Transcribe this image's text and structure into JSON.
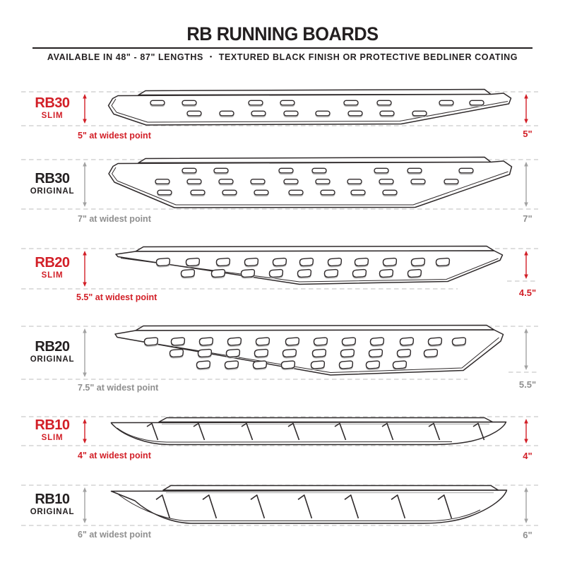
{
  "header": {
    "title": "RB RUNNING BOARDS",
    "subtitle_left": "AVAILABLE IN 48\" - 87\" LENGTHS",
    "subtitle_separator": "•",
    "subtitle_right": "TEXTURED BLACK FINISH OR PROTECTIVE BEDLINER COATING"
  },
  "colors": {
    "accent_red": "#d21f27",
    "ink": "#231f20",
    "muted_gray": "#8f8f8f",
    "arrow_gray": "#a2a2a2",
    "dash_gray": "#c9c9c9",
    "line_dark": "#2f2a2b"
  },
  "rows": [
    {
      "model": "RB30",
      "variant": "SLIM",
      "theme": "red",
      "width_note": "5\" at widest point",
      "height_label": "5\"",
      "tread_pattern": "oval-slots",
      "slot_rows": [
        8,
        8
      ]
    },
    {
      "model": "RB30",
      "variant": "ORIGINAL",
      "theme": "gray",
      "width_note": "7\" at widest point",
      "height_label": "7\"",
      "tread_pattern": "oval-slots",
      "slot_rows": [
        7,
        10,
        8
      ]
    },
    {
      "model": "RB20",
      "variant": "SLIM",
      "theme": "red",
      "width_note": "5.5\" at widest point",
      "height_label": "4.5\"",
      "tread_pattern": "d-slots",
      "slot_rows": [
        11,
        9
      ]
    },
    {
      "model": "RB20",
      "variant": "ORIGINAL",
      "theme": "gray",
      "width_note": "7.5\" at widest point",
      "height_label": "5.5\"",
      "tread_pattern": "d-slots",
      "slot_rows": [
        12,
        10,
        8
      ]
    },
    {
      "model": "RB10",
      "variant": "SLIM",
      "theme": "red",
      "width_note": "4\" at widest point",
      "height_label": "4\"",
      "tread_pattern": "hash-marks",
      "slot_rows": [
        8
      ]
    },
    {
      "model": "RB10",
      "variant": "ORIGINAL",
      "theme": "gray",
      "width_note": "6\" at widest point",
      "height_label": "6\"",
      "tread_pattern": "hash-marks",
      "slot_rows": [
        7
      ]
    }
  ]
}
